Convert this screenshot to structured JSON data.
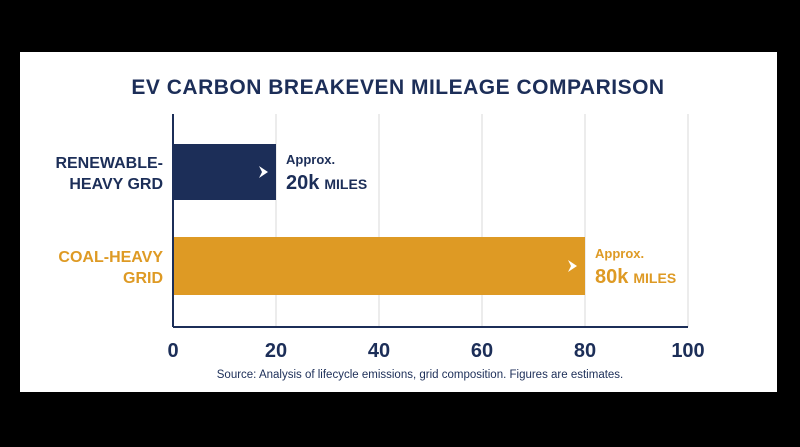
{
  "chart_data": {
    "type": "bar",
    "orientation": "horizontal",
    "title": "EV CARBON BREAKEVEN MILEAGE COMPARISON",
    "categories": [
      [
        "RENEWABLE-",
        "HEAVY GRD"
      ],
      [
        "COAL-HEAVY",
        "GRID"
      ]
    ],
    "values": [
      20,
      80
    ],
    "data_labels": [
      {
        "prefix": "Approx.",
        "value": "20k",
        "unit": "MILES"
      },
      {
        "prefix": "Approx.",
        "value": "80k",
        "unit": "MILES"
      }
    ],
    "bar_colors": [
      "#1c2e58",
      "#de9a24"
    ],
    "xlim": [
      0,
      100
    ],
    "xticks": [
      0,
      20,
      40,
      60,
      80,
      100
    ],
    "grid": true,
    "source": "Source: Analysis of lifecycle emissions, grid composition. Figures are estimates."
  },
  "colors": {
    "background": "#000000",
    "panel": "#ffffff",
    "navy": "#1c2e58",
    "gold": "#de9a24",
    "gridline": "#d9d9d9"
  }
}
